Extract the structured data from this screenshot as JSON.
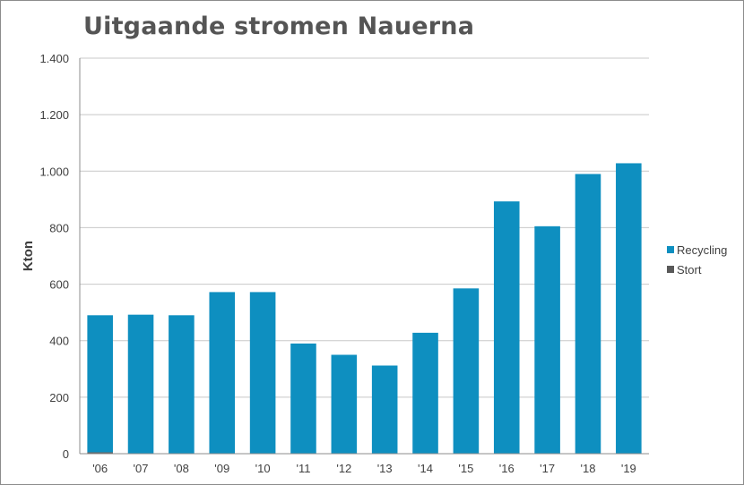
{
  "chart_data": {
    "type": "bar",
    "title": "Uitgaande stromen Nauerna",
    "xlabel": "",
    "ylabel": "Kton",
    "ylim": [
      0,
      1400
    ],
    "yticks": [
      0,
      200,
      400,
      600,
      800,
      1000,
      1200,
      1400
    ],
    "ytick_labels": [
      "0",
      "200",
      "400",
      "600",
      "800",
      "1.000",
      "1.200",
      "1.400"
    ],
    "categories": [
      "'06",
      "'07",
      "'08",
      "'09",
      "'10",
      "'11",
      "'12",
      "'13",
      "'14",
      "'15",
      "'16",
      "'17",
      "'18",
      "'19"
    ],
    "stacked": true,
    "series": [
      {
        "name": "Stort",
        "color": "#595959",
        "values": [
          5,
          0,
          0,
          0,
          0,
          0,
          0,
          0,
          0,
          0,
          0,
          0,
          0,
          0
        ]
      },
      {
        "name": "Recycling",
        "color": "#0e8fc0",
        "values": [
          485,
          492,
          490,
          572,
          572,
          390,
          350,
          312,
          428,
          585,
          893,
          805,
          990,
          1028
        ]
      }
    ],
    "legend": {
      "position": "right",
      "entries": [
        "Recycling",
        "Stort"
      ]
    },
    "grid": true
  }
}
